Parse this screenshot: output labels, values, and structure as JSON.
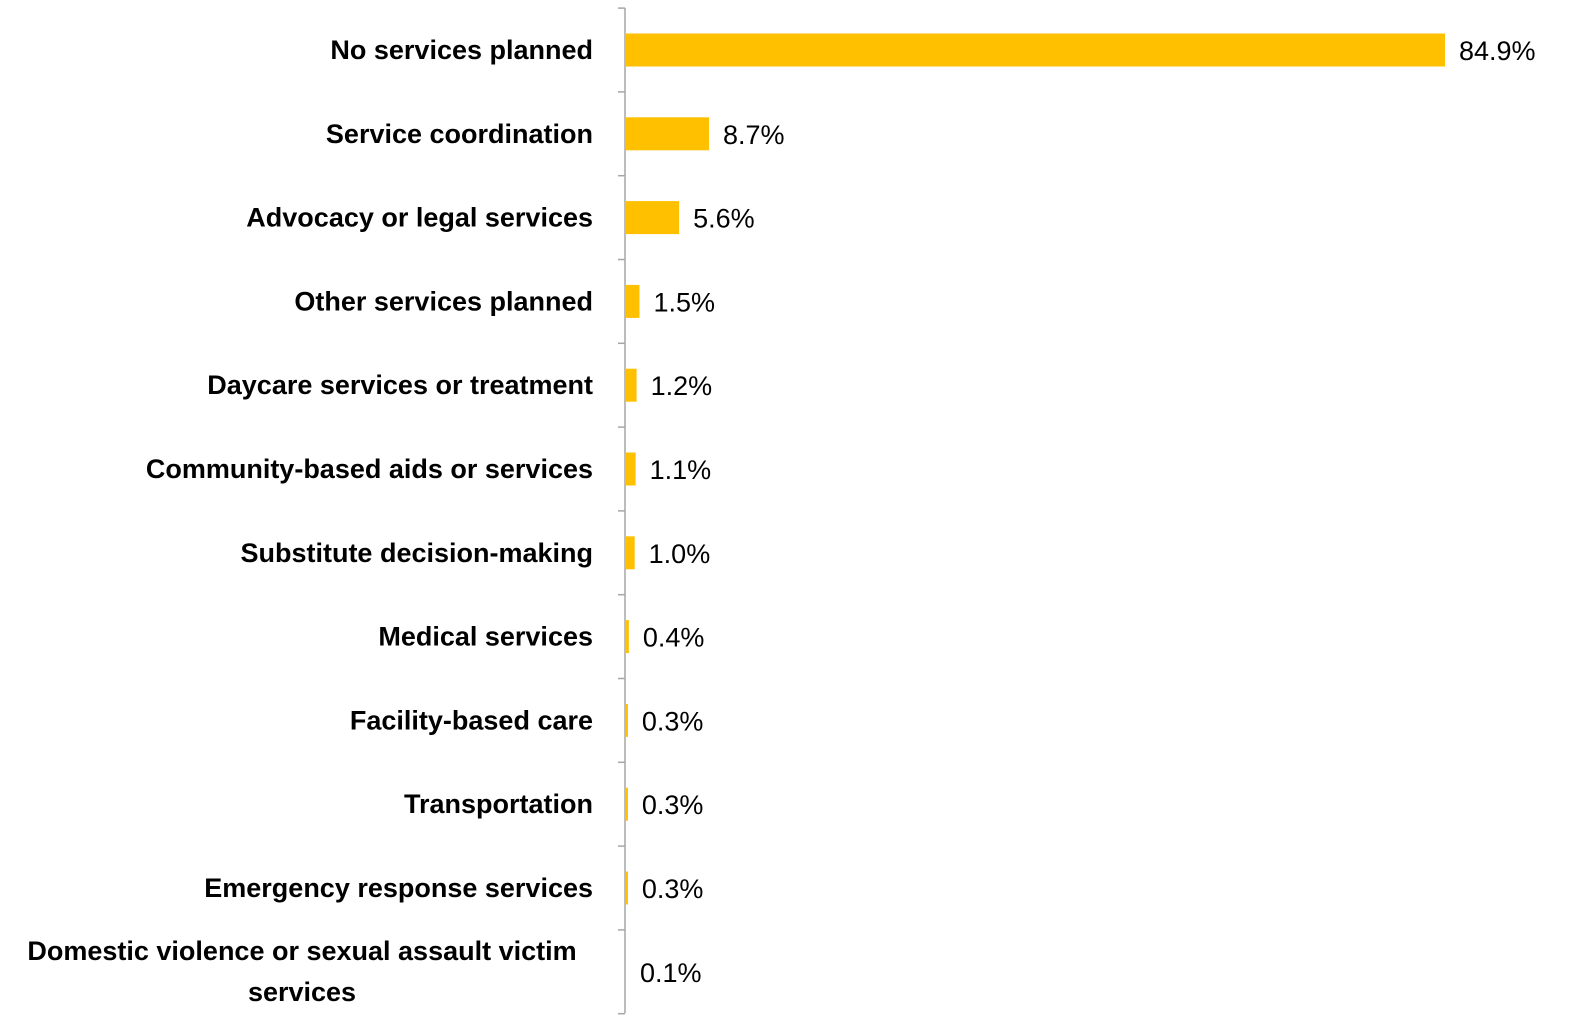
{
  "chart_data": {
    "type": "bar",
    "orientation": "horizontal",
    "categories": [
      "No services planned",
      "Service coordination",
      "Advocacy or legal services",
      "Other services planned",
      "Daycare services or treatment",
      "Community-based aids or services",
      "Substitute decision-making",
      "Medical services",
      "Facility-based care",
      "Transportation",
      "Emergency response services",
      "Domestic violence or sexual assault victim services"
    ],
    "values": [
      84.9,
      8.7,
      5.6,
      1.5,
      1.2,
      1.1,
      1.0,
      0.4,
      0.3,
      0.3,
      0.3,
      0.1
    ],
    "value_labels": [
      "84.9%",
      "8.7%",
      "5.6%",
      "1.5%",
      "1.2%",
      "1.1%",
      "1.0%",
      "0.4%",
      "0.3%",
      "0.3%",
      "0.3%",
      "0.1%"
    ],
    "title": "",
    "xlabel": "",
    "ylabel": "",
    "xlim": [
      0,
      84.9
    ],
    "grid": false,
    "legend": "none",
    "bar_color": "#FFC000",
    "axis_color": "#A6A6A6"
  }
}
